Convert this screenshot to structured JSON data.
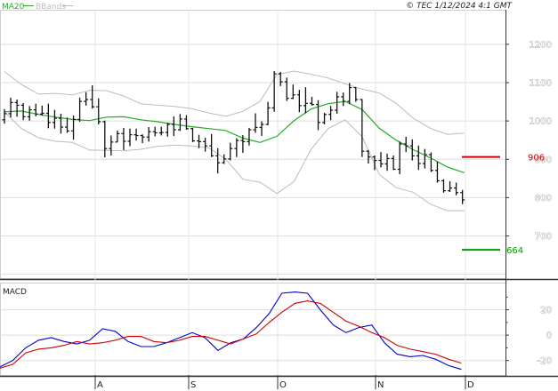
{
  "chart_data": [
    {
      "type": "ohlc",
      "copyright": "© TEC 1/12/2024 4:1 GMT",
      "legend": [
        {
          "name": "MA20",
          "color": "#22aa22"
        },
        {
          "name": "BBands",
          "color": "#bbbbbb"
        }
      ],
      "ylim": [
        590,
        1290
      ],
      "yticks": [
        700,
        800,
        900,
        1000,
        1100,
        1200
      ],
      "grid": true,
      "x_months": [
        "A",
        "S",
        "O",
        "N",
        "D"
      ],
      "levels": [
        {
          "value": 906,
          "label": "906",
          "color": "#cc0000"
        },
        {
          "value": 664,
          "label": "664",
          "color": "#009900"
        }
      ],
      "ohlc": [
        [
          1003,
          1031,
          993,
          1019
        ],
        [
          1019,
          1061,
          1009,
          1048
        ],
        [
          1048,
          1056,
          1011,
          1041
        ],
        [
          1041,
          1047,
          1002,
          1011
        ],
        [
          1011,
          1039,
          1001,
          1029
        ],
        [
          1029,
          1045,
          1012,
          1018
        ],
        [
          1018,
          1040,
          1014,
          1020
        ],
        [
          1020,
          1045,
          981,
          996
        ],
        [
          996,
          1029,
          980,
          1007
        ],
        [
          1007,
          1019,
          967,
          984
        ],
        [
          984,
          1009,
          969,
          974
        ],
        [
          974,
          1014,
          951,
          1004
        ],
        [
          1004,
          1061,
          998,
          1051
        ],
        [
          1051,
          1075,
          1040,
          1056
        ],
        [
          1056,
          1093,
          1032,
          1037
        ],
        [
          1037,
          1059,
          991,
          998
        ],
        [
          998,
          1001,
          905,
          928
        ],
        [
          928,
          962,
          910,
          945
        ],
        [
          945,
          975,
          945,
          967
        ],
        [
          967,
          982,
          924,
          947
        ],
        [
          947,
          980,
          934,
          964
        ],
        [
          964,
          980,
          949,
          962
        ],
        [
          962,
          965,
          942,
          958
        ],
        [
          958,
          984,
          946,
          972
        ],
        [
          972,
          985,
          960,
          969
        ],
        [
          969,
          985,
          962,
          970
        ],
        [
          970,
          995,
          959,
          991
        ],
        [
          991,
          1012,
          961,
          977
        ],
        [
          977,
          1018,
          974,
          1005
        ],
        [
          1005,
          1015,
          977,
          980
        ],
        [
          980,
          982,
          945,
          948
        ],
        [
          948,
          964,
          929,
          946
        ],
        [
          946,
          956,
          920,
          935
        ],
        [
          935,
          966,
          906,
          909
        ],
        [
          909,
          929,
          863,
          891
        ],
        [
          891,
          913,
          888,
          901
        ],
        [
          901,
          943,
          897,
          928
        ],
        [
          928,
          955,
          906,
          949
        ],
        [
          949,
          963,
          917,
          946
        ],
        [
          946,
          982,
          936,
          977
        ],
        [
          977,
          1020,
          969,
          983
        ],
        [
          983,
          999,
          961,
          991
        ],
        [
          991,
          1050,
          989,
          1034
        ],
        [
          1034,
          1130,
          1024,
          1123
        ],
        [
          1123,
          1128,
          1091,
          1102
        ],
        [
          1102,
          1113,
          1052,
          1059
        ],
        [
          1059,
          1095,
          1057,
          1068
        ],
        [
          1068,
          1081,
          1023,
          1040
        ],
        [
          1040,
          1088,
          1020,
          1046
        ],
        [
          1046,
          1063,
          1040,
          1043
        ],
        [
          1043,
          1054,
          976,
          996
        ],
        [
          996,
          1021,
          991,
          1017
        ],
        [
          1017,
          1039,
          1002,
          1028
        ],
        [
          1028,
          1076,
          1019,
          1063
        ],
        [
          1063,
          1074,
          1039,
          1051
        ],
        [
          1051,
          1099,
          1044,
          1087
        ],
        [
          1087,
          1088,
          1050,
          1056
        ],
        [
          1056,
          1057,
          906,
          921
        ],
        [
          921,
          924,
          889,
          906
        ],
        [
          906,
          910,
          872,
          897
        ],
        [
          897,
          919,
          879,
          888
        ],
        [
          888,
          915,
          870,
          902
        ],
        [
          902,
          910,
          872,
          874
        ],
        [
          874,
          946,
          861,
          940
        ],
        [
          940,
          959,
          919,
          935
        ],
        [
          935,
          952,
          897,
          909
        ],
        [
          909,
          936,
          872,
          889
        ],
        [
          889,
          927,
          876,
          912
        ],
        [
          912,
          918,
          867,
          871
        ],
        [
          871,
          894,
          839,
          844
        ],
        [
          844,
          848,
          813,
          818
        ],
        [
          818,
          843,
          815,
          825
        ],
        [
          825,
          839,
          806,
          813
        ],
        [
          813,
          820,
          783,
          794
        ]
      ],
      "ma20": [
        [
          0,
          1024
        ],
        [
          0.087,
          1026
        ],
        [
          0.174,
          1017
        ],
        [
          0.261,
          1010
        ],
        [
          0.348,
          1004
        ],
        [
          0.435,
          1001
        ],
        [
          0.522,
          1010
        ],
        [
          0.609,
          1011
        ],
        [
          0.696,
          1003
        ],
        [
          0.783,
          998
        ],
        [
          0.87,
          991
        ],
        [
          0.957,
          985
        ],
        [
          1.044,
          980
        ],
        [
          1.131,
          975
        ],
        [
          1.218,
          955
        ],
        [
          1.305,
          944
        ],
        [
          1.392,
          960
        ],
        [
          1.479,
          1001
        ],
        [
          1.566,
          1031
        ],
        [
          1.653,
          1045
        ],
        [
          1.74,
          1051
        ],
        [
          1.827,
          1030
        ],
        [
          1.914,
          981
        ],
        [
          2.001,
          950
        ],
        [
          2.088,
          925
        ],
        [
          2.175,
          904
        ],
        [
          2.262,
          880
        ],
        [
          2.349,
          865
        ]
      ],
      "bb_upper": [
        [
          0,
          1129
        ],
        [
          0.087,
          1095
        ],
        [
          0.174,
          1070
        ],
        [
          0.261,
          1072
        ],
        [
          0.348,
          1068
        ],
        [
          0.435,
          1080
        ],
        [
          0.522,
          1079
        ],
        [
          0.609,
          1065
        ],
        [
          0.696,
          1045
        ],
        [
          0.783,
          1041
        ],
        [
          0.87,
          1038
        ],
        [
          0.957,
          1032
        ],
        [
          1.044,
          1021
        ],
        [
          1.131,
          1012
        ],
        [
          1.218,
          1025
        ],
        [
          1.305,
          1051
        ],
        [
          1.392,
          1121
        ],
        [
          1.479,
          1130
        ],
        [
          1.566,
          1122
        ],
        [
          1.653,
          1112
        ],
        [
          1.74,
          1097
        ],
        [
          1.827,
          1083
        ],
        [
          1.914,
          1073
        ],
        [
          2.001,
          1046
        ],
        [
          2.088,
          1007
        ],
        [
          2.175,
          981
        ],
        [
          2.262,
          965
        ],
        [
          2.349,
          968
        ]
      ],
      "bb_lower": [
        [
          0,
          1024
        ],
        [
          0.087,
          980
        ],
        [
          0.174,
          956
        ],
        [
          0.261,
          947
        ],
        [
          0.348,
          944
        ],
        [
          0.435,
          924
        ],
        [
          0.522,
          923
        ],
        [
          0.609,
          922
        ],
        [
          0.696,
          926
        ],
        [
          0.783,
          934
        ],
        [
          0.87,
          937
        ],
        [
          0.957,
          935
        ],
        [
          1.044,
          930
        ],
        [
          1.131,
          900
        ],
        [
          1.218,
          848
        ],
        [
          1.305,
          840
        ],
        [
          1.392,
          811
        ],
        [
          1.479,
          842
        ],
        [
          1.566,
          926
        ],
        [
          1.653,
          980
        ],
        [
          1.74,
          1003
        ],
        [
          1.827,
          959
        ],
        [
          1.914,
          861
        ],
        [
          2.001,
          826
        ],
        [
          2.088,
          814
        ],
        [
          2.175,
          783
        ],
        [
          2.262,
          766
        ],
        [
          2.349,
          766
        ]
      ]
    },
    {
      "type": "line",
      "title": "MACD",
      "ylim": [
        -30,
        40
      ],
      "yticks": [
        -20,
        0,
        20
      ],
      "ytick_labels": [
        "-20",
        "0",
        "20"
      ],
      "series": [
        {
          "color": "#0000cc",
          "values": [
            [
              0,
              -25
            ],
            [
              0.053,
              -20
            ],
            [
              0.107,
              -10
            ],
            [
              0.16,
              -4
            ],
            [
              0.213,
              -2
            ],
            [
              0.267,
              -5
            ],
            [
              0.32,
              -7
            ],
            [
              0.373,
              -4
            ],
            [
              0.427,
              5
            ],
            [
              0.48,
              3
            ],
            [
              0.533,
              -5
            ],
            [
              0.587,
              -9
            ],
            [
              0.64,
              -9
            ],
            [
              0.693,
              -6
            ],
            [
              0.747,
              -2
            ],
            [
              0.8,
              2
            ],
            [
              0.853,
              -2
            ],
            [
              0.907,
              -12
            ],
            [
              0.96,
              -6
            ],
            [
              1.013,
              -3
            ],
            [
              1.067,
              6
            ],
            [
              1.12,
              17
            ],
            [
              1.173,
              33
            ],
            [
              1.227,
              34
            ],
            [
              1.28,
              33
            ],
            [
              1.333,
              20
            ],
            [
              1.387,
              8
            ],
            [
              1.44,
              2
            ],
            [
              1.493,
              6
            ],
            [
              1.547,
              8
            ],
            [
              1.6,
              -6
            ],
            [
              1.653,
              -15
            ],
            [
              1.707,
              -17
            ],
            [
              1.76,
              -16
            ],
            [
              1.813,
              -19
            ],
            [
              1.867,
              -24
            ],
            [
              1.92,
              -27
            ]
          ]
        },
        {
          "color": "#cc0000",
          "values": [
            [
              0,
              -26
            ],
            [
              0.053,
              -23
            ],
            [
              0.107,
              -14
            ],
            [
              0.16,
              -11
            ],
            [
              0.213,
              -10
            ],
            [
              0.267,
              -8
            ],
            [
              0.32,
              -5
            ],
            [
              0.373,
              -7
            ],
            [
              0.427,
              -6
            ],
            [
              0.48,
              -4
            ],
            [
              0.533,
              -1
            ],
            [
              0.587,
              -1
            ],
            [
              0.64,
              -5
            ],
            [
              0.693,
              -6
            ],
            [
              0.747,
              -4
            ],
            [
              0.8,
              -1
            ],
            [
              0.853,
              -1
            ],
            [
              0.907,
              -4
            ],
            [
              0.96,
              -7
            ],
            [
              1.013,
              -3
            ],
            [
              1.067,
              1
            ],
            [
              1.12,
              10
            ],
            [
              1.173,
              18
            ],
            [
              1.227,
              25
            ],
            [
              1.28,
              27
            ],
            [
              1.333,
              25
            ],
            [
              1.387,
              18
            ],
            [
              1.44,
              11
            ],
            [
              1.493,
              7
            ],
            [
              1.547,
              2
            ],
            [
              1.6,
              -2
            ],
            [
              1.653,
              -8
            ],
            [
              1.707,
              -11
            ],
            [
              1.76,
              -13
            ],
            [
              1.813,
              -15
            ],
            [
              1.867,
              -19
            ],
            [
              1.92,
              -22
            ]
          ]
        }
      ]
    }
  ]
}
